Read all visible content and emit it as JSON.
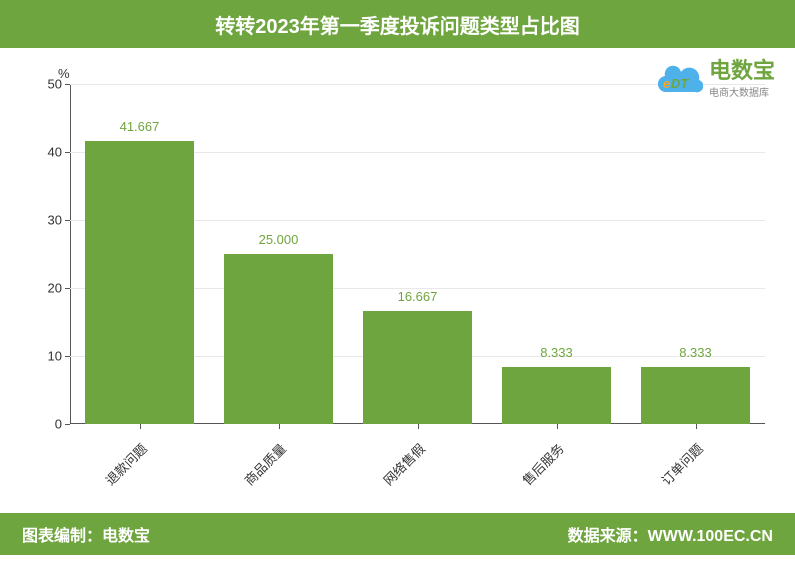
{
  "header": {
    "title": "转转2023年第一季度投诉问题类型占比图"
  },
  "logo": {
    "main": "电数宝",
    "sub": "电商大数据库",
    "cloud_color": "#3ba9e8",
    "edt_e_color": "#f5a623",
    "edt_dt_color": "#6fa53e"
  },
  "chart": {
    "type": "bar",
    "y_unit": "%",
    "ylim": [
      0,
      50
    ],
    "ytick_step": 10,
    "yticks": [
      0,
      10,
      20,
      30,
      40,
      50
    ],
    "categories": [
      "退款问题",
      "商品质量",
      "网络售假",
      "售后服务",
      "订单问题"
    ],
    "values": [
      41.667,
      25.0,
      16.667,
      8.333,
      8.333
    ],
    "value_labels": [
      "41.667",
      "25.000",
      "16.667",
      "8.333",
      "8.333"
    ],
    "bar_color": "#6fa53e",
    "value_label_color": "#6fa53e",
    "grid_color": "#e8e8e8",
    "axis_color": "#555555",
    "tick_label_color": "#333333",
    "background_color": "#ffffff",
    "bar_width_ratio": 0.78,
    "x_label_rotation": -45,
    "label_fontsize": 13
  },
  "footer": {
    "left": "图表编制：电数宝",
    "right": "数据来源：WWW.100EC.CN"
  },
  "colors": {
    "brand_green": "#6fa53e"
  }
}
